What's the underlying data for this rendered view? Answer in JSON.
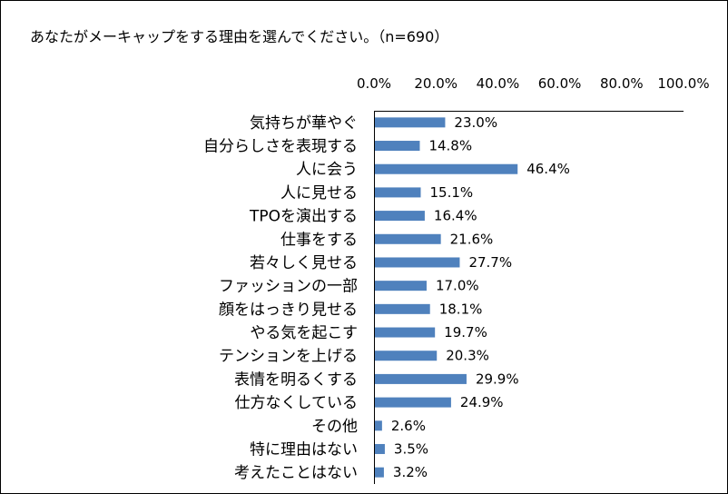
{
  "chart_data": {
    "type": "bar",
    "orientation": "horizontal",
    "title": "あなたがメーキャップをする理由を選んでください。（n=690）",
    "categories": [
      "気持ちが華やぐ",
      "自分らしさを表現する",
      "人に会う",
      "人に見せる",
      "TPOを演出する",
      "仕事をする",
      "若々しく見せる",
      "ファッションの一部",
      "顔をはっきり見せる",
      "やる気を起こす",
      "テンションを上げる",
      "表情を明るくする",
      "仕方なくしている",
      "その他",
      "特に理由はない",
      "考えたことはない"
    ],
    "values": [
      23.0,
      14.8,
      46.4,
      15.1,
      16.4,
      21.6,
      27.7,
      17.0,
      18.1,
      19.7,
      20.3,
      29.9,
      24.9,
      2.6,
      3.5,
      3.2
    ],
    "value_labels": [
      "23.0%",
      "14.8%",
      "46.4%",
      "15.1%",
      "16.4%",
      "21.6%",
      "27.7%",
      "17.0%",
      "18.1%",
      "19.7%",
      "20.3%",
      "29.9%",
      "24.9%",
      "2.6%",
      "3.5%",
      "3.2%"
    ],
    "xlim": [
      0,
      100
    ],
    "x_ticks": [
      0,
      20,
      40,
      60,
      80,
      100
    ],
    "x_tick_labels": [
      "0.0%",
      "20.0%",
      "40.0%",
      "60.0%",
      "80.0%",
      "100.0%"
    ],
    "x_axis_position": "top",
    "grid": false,
    "legend": "none",
    "bar_color": "#4F81BD"
  }
}
